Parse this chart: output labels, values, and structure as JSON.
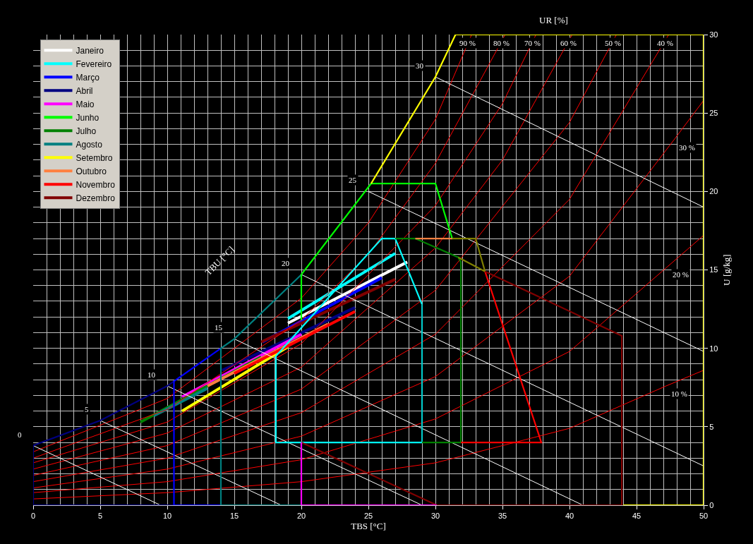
{
  "chart_data": {
    "type": "line",
    "xlabel": "TBS [°C]",
    "ylabel": "U [g/kg]",
    "xlim": [
      0,
      50
    ],
    "ylim": [
      0,
      30
    ],
    "xticks": [
      0,
      5,
      10,
      15,
      20,
      25,
      30,
      35,
      40,
      45,
      50
    ],
    "yticks": [
      0,
      5,
      10,
      15,
      20,
      25,
      30
    ],
    "grid": true,
    "legend": "top left",
    "marker": "none",
    "line_style": "solid",
    "series": [
      {
        "name": "Janeiro",
        "color": "#ffffff",
        "x": [
          19.0,
          27.9
        ],
        "values": [
          11.6,
          15.5
        ]
      },
      {
        "name": "Fevereiro",
        "color": "#00ffff",
        "x": [
          19.0,
          27.0
        ],
        "values": [
          11.9,
          16.05
        ]
      },
      {
        "name": "Março",
        "color": "#0000ff",
        "x": [
          17.1,
          26.0
        ],
        "values": [
          10.4,
          14.5
        ]
      },
      {
        "name": "Abril",
        "color": "#000080",
        "x": [
          14.1,
          24.0
        ],
        "values": [
          8.6,
          12.6
        ]
      },
      {
        "name": "Maio",
        "color": "#ff00ff",
        "x": [
          11.1,
          20.0
        ],
        "values": [
          6.9,
          10.9
        ]
      },
      {
        "name": "Junho",
        "color": "#00ff00",
        "values": [
          null,
          null
        ]
      },
      {
        "name": "Julho",
        "color": "#008000",
        "x": [
          8.0,
          17.0
        ],
        "values": [
          5.3,
          9.45
        ]
      },
      {
        "name": "Agosto",
        "color": "#008080",
        "x": [
          9.0,
          13.0
        ],
        "values": [
          5.7,
          7.45
        ]
      },
      {
        "name": "Setembro",
        "color": "#ffff00",
        "x": [
          11.1,
          19.0
        ],
        "values": [
          6.0,
          10.1
        ]
      },
      {
        "name": "Outubro",
        "color": "#ff8040",
        "x": [
          13.0,
          22.0
        ],
        "values": [
          7.6,
          11.55
        ]
      },
      {
        "name": "Novembro",
        "color": "#ff0000",
        "x": [
          15.0,
          24.0
        ],
        "values": [
          8.4,
          12.35
        ]
      },
      {
        "name": "Dezembro",
        "color": "#800000",
        "x": [
          17.0,
          27.0
        ],
        "values": [
          10.4,
          14.4
        ]
      },
      {
        "color": "#ff0000",
        "x": [
          0,
          10,
          20,
          25,
          30,
          32.7
        ],
        "values": [
          3.4,
          6.8,
          13.2,
          18,
          24.6,
          30
        ]
      },
      {
        "color": "#ff0000",
        "x": [
          0,
          10,
          20,
          25,
          30,
          35.2
        ],
        "values": [
          3.0,
          6.1,
          11.8,
          16,
          21.8,
          30
        ]
      },
      {
        "color": "#ff0000",
        "x": [
          0,
          10,
          20,
          30,
          35,
          37.5
        ],
        "values": [
          2.7,
          5.3,
          10.3,
          19.1,
          25.6,
          30
        ]
      },
      {
        "color": "#ff0000",
        "x": [
          0,
          10,
          20,
          30,
          35,
          40.2
        ],
        "values": [
          2.3,
          4.6,
          8.8,
          16.4,
          22,
          30
        ]
      },
      {
        "color": "#ff0000",
        "x": [
          0,
          10,
          20,
          30,
          40,
          43.5
        ],
        "values": [
          1.9,
          3.8,
          7.4,
          13.7,
          24.4,
          30
        ]
      },
      {
        "color": "#ff0000",
        "x": [
          0,
          10,
          20,
          30,
          40,
          47.4
        ],
        "values": [
          1.5,
          3.0,
          5.9,
          10.9,
          19.5,
          30
        ]
      },
      {
        "color": "#ff0000",
        "x": [
          0,
          10,
          20,
          30,
          40,
          47.8,
          50
        ],
        "values": [
          1.1,
          2.3,
          4.4,
          8.2,
          14.6,
          23.3,
          25.8
        ]
      },
      {
        "color": "#ff0000",
        "x": [
          0,
          10,
          20,
          30,
          40,
          47.3,
          50
        ],
        "values": [
          0.8,
          1.5,
          2.9,
          5.5,
          9.8,
          15.2,
          17.2
        ]
      },
      {
        "color": "#ff0000",
        "x": [
          0,
          10,
          20,
          30,
          40,
          47.2,
          50
        ],
        "values": [
          0.4,
          0.8,
          1.5,
          2.7,
          4.9,
          7.6,
          8.6
        ]
      },
      {
        "color": "#ffffff",
        "x": [
          0,
          9.5
        ],
        "values": [
          3.8,
          0
        ]
      },
      {
        "color": "#ffffff",
        "x": [
          5,
          18.5
        ],
        "values": [
          5.4,
          0
        ]
      },
      {
        "color": "#ffffff",
        "x": [
          10,
          29
        ],
        "values": [
          7.6,
          0
        ]
      },
      {
        "color": "#ffffff",
        "x": [
          15,
          41
        ],
        "values": [
          10.6,
          0
        ]
      },
      {
        "color": "#ffffff",
        "x": [
          20,
          50
        ],
        "values": [
          14.7,
          2.5
        ]
      },
      {
        "color": "#ffffff",
        "x": [
          25,
          50
        ],
        "values": [
          20.0,
          9.8
        ]
      },
      {
        "color": "#ffffff",
        "x": [
          30,
          50
        ],
        "values": [
          27.3,
          19.0
        ]
      },
      {
        "color": "#000080",
        "x": [
          10.5,
          0,
          0,
          5,
          10,
          10.5
        ],
        "values": [
          0,
          0,
          3.8,
          5.4,
          7.6,
          7.9
        ]
      },
      {
        "color": "#0000ff",
        "x": [
          14,
          10.5,
          10.5,
          14
        ],
        "values": [
          0,
          0,
          7.9,
          10.0
        ]
      },
      {
        "color": "#008080",
        "x": [
          20,
          14,
          14,
          15,
          20
        ],
        "values": [
          0,
          0,
          10.0,
          10.6,
          14.7
        ]
      },
      {
        "color": "#00ff00",
        "x": [
          20,
          20,
          25.2,
          30,
          31.25
        ],
        "values": [
          11.8,
          14.7,
          20.5,
          20.5,
          17.0
        ]
      },
      {
        "color": "#ffff00",
        "x": [
          25.2,
          30,
          31.5,
          50,
          50,
          44
        ],
        "values": [
          20.5,
          27.3,
          30,
          30,
          0,
          0
        ]
      },
      {
        "color": "#00ffff",
        "x": [
          29,
          27,
          26,
          18.1,
          18.1,
          29
        ],
        "values": [
          12.8,
          17,
          17,
          9.5,
          4,
          4
        ]
      },
      {
        "color": "#00c8c8",
        "x": [
          29,
          29
        ],
        "values": [
          4,
          12.8
        ]
      },
      {
        "color": "#008000",
        "x": [
          27,
          28.5,
          31.7,
          31.9,
          31.9,
          29
        ],
        "values": [
          17,
          17,
          15.8,
          15.5,
          4,
          4
        ]
      },
      {
        "color": "#ff8040",
        "x": [
          28.5,
          31.25
        ],
        "values": [
          17,
          17
        ]
      },
      {
        "color": "#808000",
        "x": [
          31.25,
          33,
          33.7,
          31.7
        ],
        "values": [
          17,
          17,
          14.9,
          15.8
        ]
      },
      {
        "color": "#ff0000",
        "x": [
          33.7,
          37.9,
          31.9
        ],
        "values": [
          14.9,
          4,
          4
        ]
      },
      {
        "color": "#800000",
        "x": [
          33.7,
          43.9,
          43.9,
          30.1,
          20
        ],
        "values": [
          14.9,
          10.8,
          0,
          0,
          4
        ]
      },
      {
        "color": "#ff00ff",
        "x": [
          20,
          20,
          30.1
        ],
        "values": [
          4,
          0,
          0
        ]
      }
    ],
    "annotations": [
      "UR [%]",
      "TBU [°C]",
      {
        "text": "90 %",
        "x": 32.7,
        "y": 30
      },
      {
        "text": "80 %",
        "x": 35.2,
        "y": 30
      },
      {
        "text": "70 %",
        "x": 37.5,
        "y": 30
      },
      {
        "text": "60 %",
        "x": 40.2,
        "y": 30
      },
      {
        "text": "50 %",
        "x": 43.5,
        "y": 30
      },
      {
        "text": "40 %",
        "x": 47.4,
        "y": 30
      },
      {
        "text": "30 %",
        "x": 47.8,
        "y": 23.3
      },
      {
        "text": "20 %",
        "x": 47.3,
        "y": 15.2
      },
      {
        "text": "10 %",
        "x": 47.2,
        "y": 7.6
      },
      {
        "text": "0",
        "x": 0,
        "y": 3.8
      },
      {
        "text": "5",
        "x": 5,
        "y": 5.4
      },
      {
        "text": "10",
        "x": 10,
        "y": 7.6
      },
      {
        "text": "15",
        "x": 15,
        "y": 10.6
      },
      {
        "text": "20",
        "x": 20,
        "y": 14.7
      },
      {
        "text": "25",
        "x": 25,
        "y": 20.0
      },
      {
        "text": "30",
        "x": 30,
        "y": 27.3
      }
    ]
  }
}
